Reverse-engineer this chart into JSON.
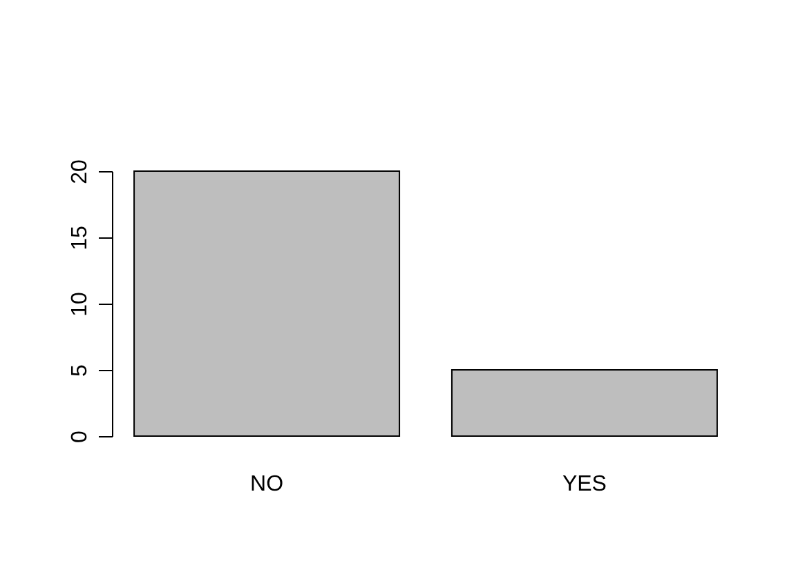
{
  "chart_data": {
    "type": "bar",
    "categories": [
      "NO",
      "YES"
    ],
    "values": [
      20,
      5
    ],
    "color": "#bebebe",
    "ylim": [
      0,
      20
    ],
    "yticks": [
      0,
      5,
      10,
      15,
      20
    ],
    "grid": false
  }
}
